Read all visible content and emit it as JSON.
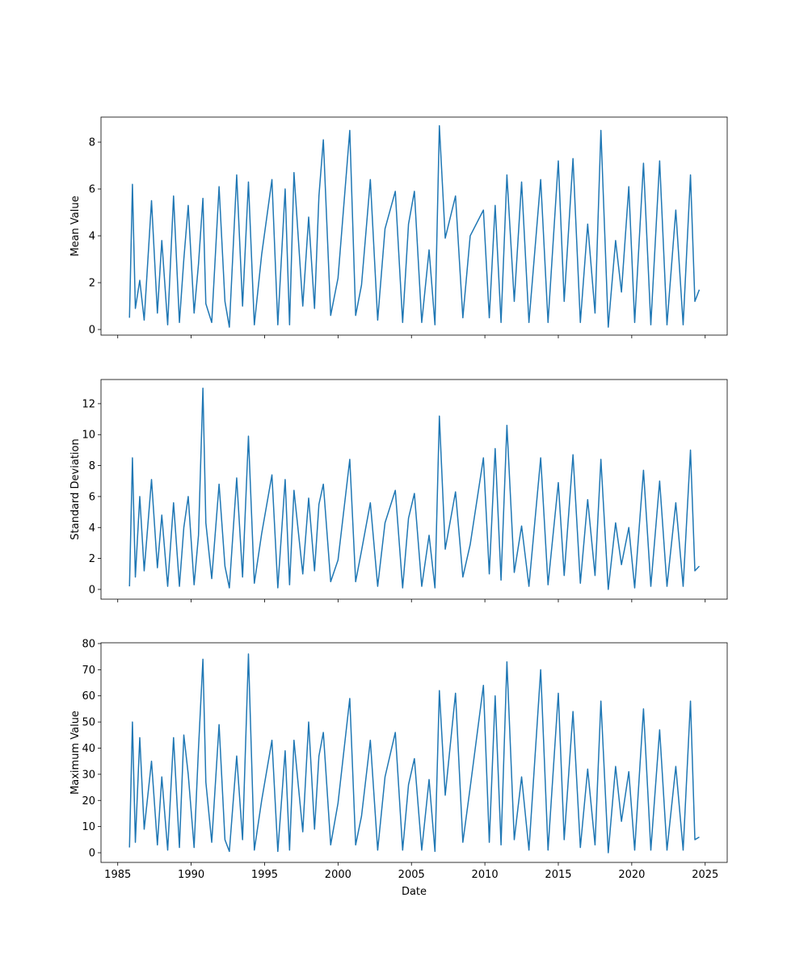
{
  "chart_data": [
    {
      "type": "line",
      "ylabel": "Mean Value",
      "x": [
        1985.8,
        1986.0,
        1986.2,
        1986.5,
        1986.8,
        1987.3,
        1987.7,
        1988.0,
        1988.4,
        1988.8,
        1989.2,
        1989.5,
        1989.8,
        1990.2,
        1990.5,
        1990.8,
        1991.0,
        1991.4,
        1991.9,
        1992.3,
        1992.6,
        1993.1,
        1993.5,
        1993.9,
        1994.3,
        1994.8,
        1995.5,
        1995.9,
        1996.4,
        1996.7,
        1997.0,
        1997.6,
        1998.0,
        1998.4,
        1998.7,
        1999.0,
        1999.5,
        2000.0,
        2000.8,
        2001.2,
        2001.6,
        2002.2,
        2002.7,
        2003.2,
        2003.9,
        2004.4,
        2004.8,
        2005.2,
        2005.7,
        2006.2,
        2006.6,
        2006.9,
        2007.3,
        2008.0,
        2008.5,
        2009.0,
        2009.9,
        2010.3,
        2010.7,
        2011.1,
        2011.5,
        2012.0,
        2012.5,
        2013.0,
        2013.8,
        2014.3,
        2015.0,
        2015.4,
        2016.0,
        2016.5,
        2017.0,
        2017.5,
        2017.9,
        2018.4,
        2018.9,
        2019.3,
        2019.8,
        2020.2,
        2020.8,
        2021.3,
        2021.9,
        2022.4,
        2023.0,
        2023.5,
        2024.0,
        2024.3,
        2024.6
      ],
      "series": [
        {
          "color": "#1f77b4",
          "values": [
            0.5,
            6.2,
            0.9,
            2.1,
            0.4,
            5.5,
            0.7,
            3.8,
            0.2,
            5.7,
            0.3,
            3.0,
            5.3,
            0.7,
            2.8,
            5.6,
            1.1,
            0.3,
            6.1,
            1.2,
            0.1,
            6.6,
            1.0,
            6.3,
            0.2,
            3.2,
            6.4,
            0.2,
            6.0,
            0.2,
            6.7,
            1.0,
            4.8,
            0.9,
            5.7,
            8.1,
            0.6,
            2.2,
            8.5,
            0.6,
            1.9,
            6.4,
            0.4,
            4.3,
            5.9,
            0.3,
            4.5,
            5.9,
            0.3,
            3.4,
            0.2,
            8.7,
            3.9,
            5.7,
            0.5,
            4.0,
            5.1,
            0.5,
            5.3,
            0.3,
            6.6,
            1.2,
            6.3,
            0.3,
            6.4,
            0.3,
            7.2,
            1.2,
            7.3,
            0.3,
            4.5,
            0.7,
            8.5,
            0.1,
            3.8,
            1.6,
            6.1,
            0.3,
            7.1,
            0.2,
            7.2,
            0.2,
            5.1,
            0.2,
            6.6,
            1.2,
            1.7
          ]
        }
      ],
      "xlim": [
        1983.86,
        2026.5
      ],
      "xticks": [
        1985,
        1990,
        1995,
        2000,
        2005,
        2010,
        2015,
        2020,
        2025
      ],
      "ylim": [
        -0.24,
        9.07
      ],
      "yticks": [
        0,
        2,
        4,
        6,
        8
      ]
    },
    {
      "type": "line",
      "ylabel": "Standard Deviation",
      "x": [
        1985.8,
        1986.0,
        1986.2,
        1986.5,
        1986.8,
        1987.3,
        1987.7,
        1988.0,
        1988.4,
        1988.8,
        1989.2,
        1989.5,
        1989.8,
        1990.2,
        1990.5,
        1990.8,
        1991.0,
        1991.4,
        1991.9,
        1992.3,
        1992.6,
        1993.1,
        1993.5,
        1993.9,
        1994.3,
        1994.8,
        1995.5,
        1995.9,
        1996.4,
        1996.7,
        1997.0,
        1997.6,
        1998.0,
        1998.4,
        1998.7,
        1999.0,
        1999.5,
        2000.0,
        2000.8,
        2001.2,
        2001.6,
        2002.2,
        2002.7,
        2003.2,
        2003.9,
        2004.4,
        2004.8,
        2005.2,
        2005.7,
        2006.2,
        2006.6,
        2006.9,
        2007.3,
        2008.0,
        2008.5,
        2009.0,
        2009.9,
        2010.3,
        2010.7,
        2011.1,
        2011.5,
        2012.0,
        2012.5,
        2013.0,
        2013.8,
        2014.3,
        2015.0,
        2015.4,
        2016.0,
        2016.5,
        2017.0,
        2017.5,
        2017.9,
        2018.4,
        2018.9,
        2019.3,
        2019.8,
        2020.2,
        2020.8,
        2021.3,
        2021.9,
        2022.4,
        2023.0,
        2023.5,
        2024.0,
        2024.3,
        2024.6
      ],
      "series": [
        {
          "color": "#1f77b4",
          "values": [
            0.2,
            8.5,
            0.8,
            6.0,
            1.2,
            7.1,
            1.4,
            4.8,
            0.2,
            5.6,
            0.2,
            4.0,
            6.0,
            0.3,
            3.5,
            13.0,
            4.3,
            0.7,
            6.8,
            1.5,
            0.1,
            7.2,
            0.8,
            9.9,
            0.4,
            3.6,
            7.4,
            0.1,
            7.1,
            0.3,
            6.4,
            1.0,
            5.9,
            1.2,
            5.5,
            6.8,
            0.5,
            1.9,
            8.4,
            0.5,
            2.5,
            5.6,
            0.2,
            4.3,
            6.4,
            0.1,
            4.6,
            6.2,
            0.2,
            3.5,
            0.1,
            11.2,
            2.6,
            6.3,
            0.8,
            2.9,
            8.5,
            1.0,
            9.1,
            0.6,
            10.6,
            1.1,
            4.1,
            0.2,
            8.5,
            0.3,
            6.9,
            0.9,
            8.7,
            0.4,
            5.8,
            0.9,
            8.4,
            0.0,
            4.3,
            1.6,
            4.0,
            0.1,
            7.7,
            0.2,
            7.0,
            0.2,
            5.6,
            0.2,
            9.0,
            1.2,
            1.5
          ]
        }
      ],
      "xlim": [
        1983.86,
        2026.5
      ],
      "xticks": [
        1985,
        1990,
        1995,
        2000,
        2005,
        2010,
        2015,
        2020,
        2025
      ],
      "ylim": [
        -0.63,
        13.56
      ],
      "yticks": [
        0,
        2,
        4,
        6,
        8,
        10,
        12
      ]
    },
    {
      "type": "line",
      "ylabel": "Maximum Value",
      "xlabel": "Date",
      "x": [
        1985.8,
        1986.0,
        1986.2,
        1986.5,
        1986.8,
        1987.3,
        1987.7,
        1988.0,
        1988.4,
        1988.8,
        1989.2,
        1989.5,
        1989.8,
        1990.2,
        1990.5,
        1990.8,
        1991.0,
        1991.4,
        1991.9,
        1992.3,
        1992.6,
        1993.1,
        1993.5,
        1993.9,
        1994.3,
        1994.8,
        1995.5,
        1995.9,
        1996.4,
        1996.7,
        1997.0,
        1997.6,
        1998.0,
        1998.4,
        1998.7,
        1999.0,
        1999.5,
        2000.0,
        2000.8,
        2001.2,
        2001.6,
        2002.2,
        2002.7,
        2003.2,
        2003.9,
        2004.4,
        2004.8,
        2005.2,
        2005.7,
        2006.2,
        2006.6,
        2006.9,
        2007.3,
        2008.0,
        2008.5,
        2009.0,
        2009.9,
        2010.3,
        2010.7,
        2011.1,
        2011.5,
        2012.0,
        2012.5,
        2013.0,
        2013.8,
        2014.3,
        2015.0,
        2015.4,
        2016.0,
        2016.5,
        2017.0,
        2017.5,
        2017.9,
        2018.4,
        2018.9,
        2019.3,
        2019.8,
        2020.2,
        2020.8,
        2021.3,
        2021.9,
        2022.4,
        2023.0,
        2023.5,
        2024.0,
        2024.3,
        2024.6
      ],
      "series": [
        {
          "color": "#1f77b4",
          "values": [
            2,
            50,
            4,
            44,
            9,
            35,
            3,
            29,
            1,
            44,
            2,
            45,
            30,
            2,
            40,
            74,
            27,
            4,
            49,
            5,
            0.5,
            37,
            5,
            76,
            1,
            20,
            43,
            0.5,
            39,
            1,
            43,
            8,
            50,
            9,
            37,
            46,
            3,
            19,
            59,
            3,
            14,
            43,
            1,
            29,
            46,
            1,
            26,
            36,
            1,
            28,
            0.5,
            62,
            22,
            61,
            4,
            25,
            64,
            4,
            60,
            3,
            73,
            5,
            29,
            1,
            70,
            1,
            61,
            5,
            54,
            2,
            32,
            3,
            58,
            0,
            33,
            12,
            31,
            1,
            55,
            1,
            47,
            1,
            33,
            1,
            58,
            5,
            6
          ]
        }
      ],
      "xlim": [
        1983.86,
        2026.5
      ],
      "xticks": [
        1985,
        1990,
        1995,
        2000,
        2005,
        2010,
        2015,
        2020,
        2025
      ],
      "ylim": [
        -3.7,
        80.3
      ],
      "yticks": [
        0,
        10,
        20,
        30,
        40,
        50,
        60,
        70,
        80
      ]
    }
  ]
}
